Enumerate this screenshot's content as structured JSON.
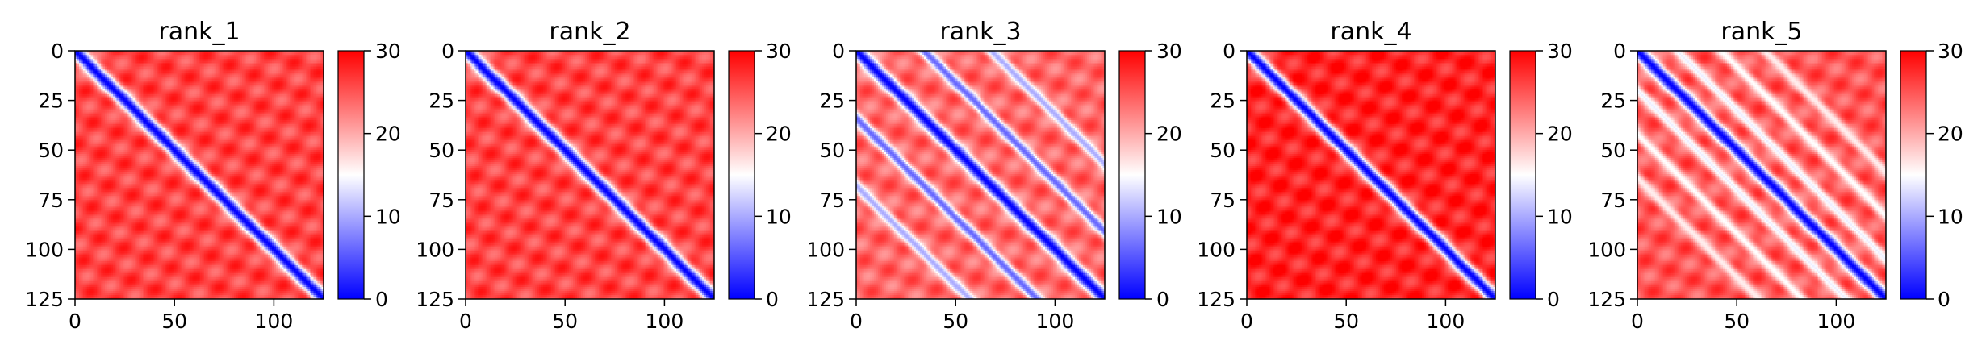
{
  "chart_data": [
    {
      "type": "heatmap",
      "title": "rank_1",
      "colormap": "bwr",
      "clim": [
        0,
        30
      ],
      "colorbar_ticks": [
        "0",
        "10",
        "20",
        "30"
      ],
      "x_ticks": [
        "0",
        "50",
        "100"
      ],
      "y_ticks": [
        "0",
        "25",
        "50",
        "75",
        "100",
        "125"
      ],
      "xlim": [
        0,
        125
      ],
      "ylim": [
        125,
        0
      ],
      "matrix_size": 125,
      "pattern": {
        "diagonal_value": 0,
        "diagonal_width": 5,
        "off_diagonal_value": 26,
        "off_diagonal_bands": []
      }
    },
    {
      "type": "heatmap",
      "title": "rank_2",
      "colormap": "bwr",
      "clim": [
        0,
        30
      ],
      "colorbar_ticks": [
        "0",
        "10",
        "20",
        "30"
      ],
      "x_ticks": [
        "0",
        "50",
        "100"
      ],
      "y_ticks": [
        "0",
        "25",
        "50",
        "75",
        "100",
        "125"
      ],
      "xlim": [
        0,
        125
      ],
      "ylim": [
        125,
        0
      ],
      "matrix_size": 125,
      "pattern": {
        "diagonal_value": 0,
        "diagonal_width": 5,
        "off_diagonal_value": 26,
        "off_diagonal_bands": []
      }
    },
    {
      "type": "heatmap",
      "title": "rank_3",
      "colormap": "bwr",
      "clim": [
        0,
        30
      ],
      "colorbar_ticks": [
        "0",
        "10",
        "20",
        "30"
      ],
      "x_ticks": [
        "0",
        "50",
        "100"
      ],
      "y_ticks": [
        "0",
        "25",
        "50",
        "75",
        "100",
        "125"
      ],
      "xlim": [
        0,
        125
      ],
      "ylim": [
        125,
        0
      ],
      "matrix_size": 125,
      "pattern": {
        "diagonal_value": 0,
        "diagonal_width": 5,
        "off_diagonal_value": 24,
        "off_diagonal_bands": [
          {
            "offset": 34,
            "value": 6
          },
          {
            "offset": -34,
            "value": 6
          },
          {
            "offset": 68,
            "value": 10
          },
          {
            "offset": -68,
            "value": 10
          }
        ]
      }
    },
    {
      "type": "heatmap",
      "title": "rank_4",
      "colormap": "bwr",
      "clim": [
        0,
        30
      ],
      "colorbar_ticks": [
        "0",
        "10",
        "20",
        "30"
      ],
      "x_ticks": [
        "0",
        "50",
        "100"
      ],
      "y_ticks": [
        "0",
        "25",
        "50",
        "75",
        "100",
        "125"
      ],
      "xlim": [
        0,
        125
      ],
      "ylim": [
        125,
        0
      ],
      "matrix_size": 125,
      "pattern": {
        "diagonal_value": 0,
        "diagonal_width": 5,
        "off_diagonal_value": 28,
        "off_diagonal_bands": []
      }
    },
    {
      "type": "heatmap",
      "title": "rank_5",
      "colormap": "bwr",
      "clim": [
        0,
        30
      ],
      "colorbar_ticks": [
        "0",
        "10",
        "20",
        "30"
      ],
      "x_ticks": [
        "0",
        "50",
        "100"
      ],
      "y_ticks": [
        "0",
        "25",
        "50",
        "75",
        "100",
        "125"
      ],
      "xlim": [
        0,
        125
      ],
      "ylim": [
        125,
        0
      ],
      "matrix_size": 125,
      "pattern": {
        "diagonal_value": 0,
        "diagonal_width": 5,
        "off_diagonal_value": 25,
        "off_diagonal_bands": [
          {
            "offset": 20,
            "value": 14
          },
          {
            "offset": -20,
            "value": 14
          },
          {
            "offset": 42,
            "value": 15
          },
          {
            "offset": -42,
            "value": 15
          },
          {
            "offset": 64,
            "value": 16
          },
          {
            "offset": -64,
            "value": 16
          }
        ]
      }
    }
  ]
}
